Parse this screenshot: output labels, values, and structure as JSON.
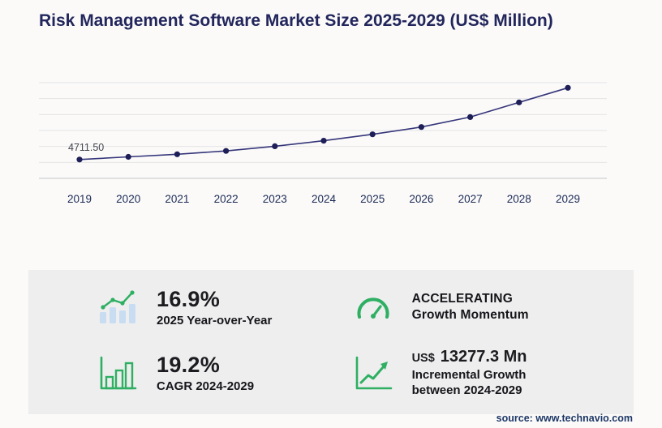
{
  "title": "Risk Management Software Market Size 2025-2029 (US$ Million)",
  "source": "source: www.technavio.com",
  "chart_data": {
    "type": "line",
    "title": "Risk Management Software Market Size 2025-2029 (US$ Million)",
    "x": [
      2019,
      2020,
      2021,
      2022,
      2023,
      2024,
      2025,
      2026,
      2027,
      2028,
      2029
    ],
    "values": [
      4711.5,
      5380,
      6050,
      6880,
      8050,
      9439.6,
      11035,
      12880,
      15380,
      19050,
      22716.9
    ],
    "first_point_label": "4711.50",
    "xlabel": "",
    "ylabel": "US$ Million",
    "ylim": [
      0,
      24000
    ],
    "gridline_step": 4000,
    "grid": "horizontal",
    "legend": "none",
    "line_color": "#35357a",
    "marker_color": "#1e1e58"
  },
  "stats": {
    "yoy": {
      "value": "16.9%",
      "label": "2025 Year-over-Year"
    },
    "momentum": {
      "line1": "ACCELERATING",
      "line2": "Growth Momentum"
    },
    "cagr": {
      "value": "19.2%",
      "label": "CAGR 2024-2029"
    },
    "incremental": {
      "currency": "US$",
      "value": "13277.3 Mn",
      "line1": "Incremental Growth",
      "line2": "between 2024-2029"
    }
  },
  "colors": {
    "title_navy": "#22265c",
    "accent_green": "#2eaf62",
    "panel_gray": "#eeeeef",
    "bar_blue": "#c9ddf2"
  }
}
